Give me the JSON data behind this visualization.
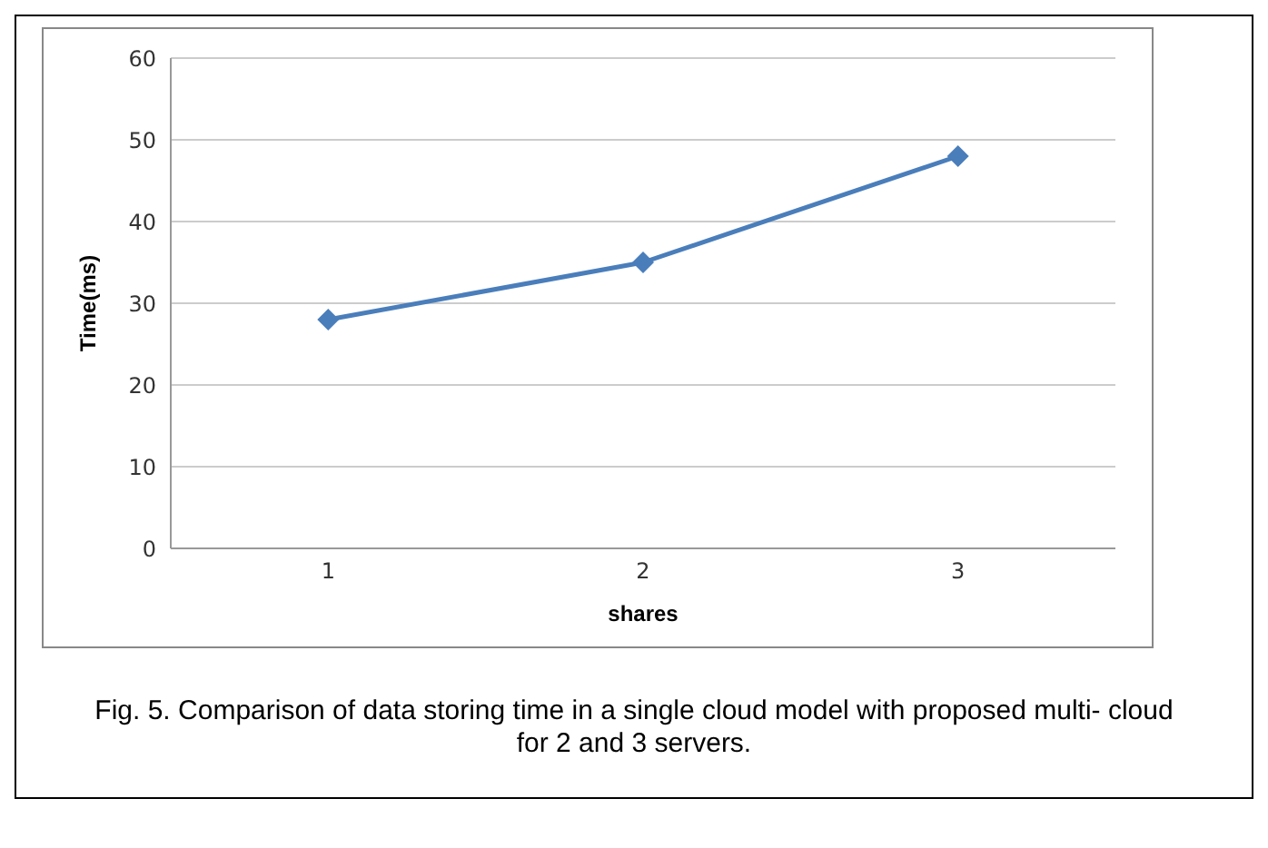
{
  "chart_data": {
    "type": "line",
    "xlabel": "shares",
    "ylabel": "Time(ms)",
    "categories": [
      "1",
      "2",
      "3"
    ],
    "series": [
      {
        "color": "#4a7ebb",
        "values": [
          28,
          35,
          48
        ]
      }
    ],
    "ylim": [
      0,
      60
    ],
    "yticks": [
      0,
      10,
      20,
      30,
      40,
      50,
      60
    ],
    "grid": "y",
    "marker": "diamond",
    "line_style": "solid",
    "annotations": [
      "Fig. 5. Comparison of data storing time in a single cloud model with proposed multi- cloud for 2 and 3 servers."
    ]
  }
}
